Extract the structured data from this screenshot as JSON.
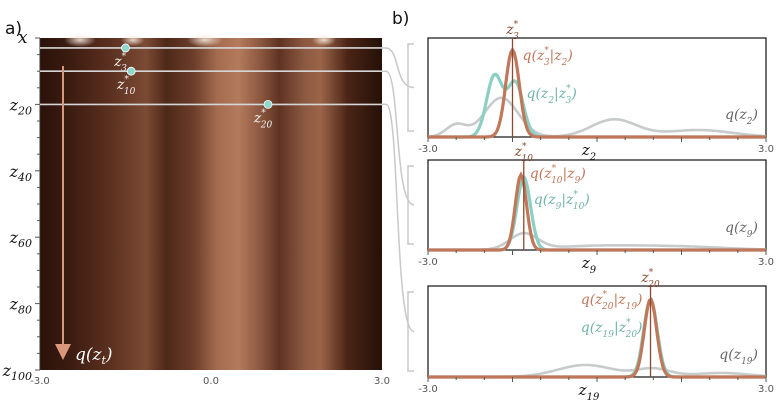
{
  "panels": {
    "a_label": "a)",
    "b_label": "b)"
  },
  "colors": {
    "band_dark": "#2b140c",
    "band_light": "#b27456",
    "posterior": "#c0775a",
    "conditional": "#8ccfc4",
    "marginal": "#c7cbcc",
    "link": "#c8c8c8",
    "arrow": "#d9987c"
  },
  "panel_a": {
    "x_label": "x",
    "y_labels": [
      {
        "base": "z",
        "sub": "20",
        "at": 20
      },
      {
        "base": "z",
        "sub": "40",
        "at": 40
      },
      {
        "base": "z",
        "sub": "60",
        "at": 60
      },
      {
        "base": "z",
        "sub": "80",
        "at": 80
      },
      {
        "base": "z",
        "sub": "100",
        "at": 100
      }
    ],
    "x_ticks": [
      "-3.0",
      "0.0",
      "3.0"
    ],
    "y_range": [
      0,
      100
    ],
    "x_range": [
      -3.0,
      3.0
    ],
    "arrow_label": {
      "base": "q(z",
      "sub": "t",
      "tail": ")"
    },
    "samples": [
      {
        "name": "z*3",
        "base": "z",
        "sup": "*",
        "sub": "3",
        "x": -1.5,
        "t": 3
      },
      {
        "name": "z*10",
        "base": "z",
        "sup": "*",
        "sub": "10",
        "x": -1.4,
        "t": 10
      },
      {
        "name": "z*20",
        "base": "z",
        "sup": "*",
        "sub": "20",
        "x": 1.0,
        "t": 20
      }
    ]
  },
  "panel_b": [
    {
      "x_ticks": [
        "-3.0",
        "3.0"
      ],
      "x_range": [
        -3.0,
        3.0
      ],
      "axis_label": {
        "base": "z",
        "sub": "2"
      },
      "marker_label": {
        "base": "z",
        "sup": "*",
        "sub": "3"
      },
      "marker_x": -1.5,
      "posterior_label": {
        "a": "q(z",
        "asup": "*",
        "asub": "3",
        "b": "|z",
        "bsub": "2",
        "c": ")"
      },
      "conditional_label": {
        "a": "q(z",
        "asub": "2",
        "b": "|z",
        "bsup": "*",
        "bsub": "3",
        "c": ")"
      },
      "marginal_label": {
        "a": "q(z",
        "asub": "2",
        "c": ")"
      }
    },
    {
      "x_ticks": [
        "-3.0",
        "3.0"
      ],
      "x_range": [
        -3.0,
        3.0
      ],
      "axis_label": {
        "base": "z",
        "sub": "9"
      },
      "marker_label": {
        "base": "z",
        "sup": "*",
        "sub": "10"
      },
      "marker_x": -1.3,
      "posterior_label": {
        "a": "q(z",
        "asup": "*",
        "asub": "10",
        "b": "|z",
        "bsub": "9",
        "c": ")"
      },
      "conditional_label": {
        "a": "q(z",
        "asub": "9",
        "b": "|z",
        "bsup": "*",
        "bsub": "10",
        "c": ")"
      },
      "marginal_label": {
        "a": "q(z",
        "asub": "9",
        "c": ")"
      }
    },
    {
      "x_ticks": [
        "-3.0",
        "3.0"
      ],
      "x_range": [
        -3.0,
        3.0
      ],
      "axis_label": {
        "base": "z",
        "sub": "19"
      },
      "marker_label": {
        "base": "z",
        "sup": "*",
        "sub": "20"
      },
      "marker_x": 0.95,
      "posterior_label": {
        "a": "q(z",
        "asup": "*",
        "asub": "20",
        "b": "|z",
        "bsub": "19",
        "c": ")"
      },
      "conditional_label": {
        "a": "q(z",
        "asub": "19",
        "b": "|z",
        "bsup": "*",
        "bsub": "20",
        "c": ")"
      },
      "marginal_label": {
        "a": "q(z",
        "asub": "19",
        "c": ")"
      }
    }
  ]
}
